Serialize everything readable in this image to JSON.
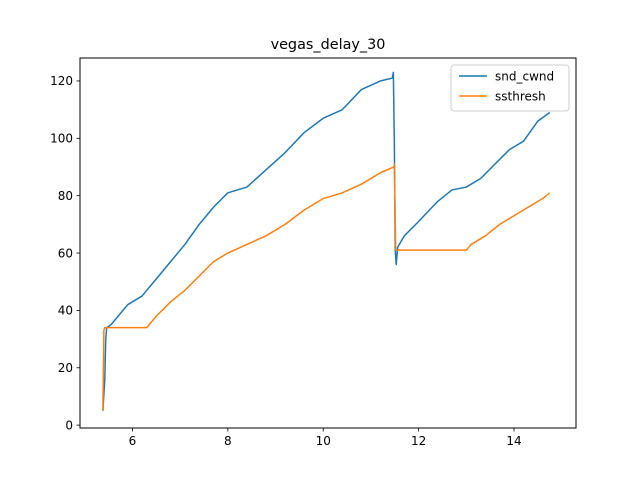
{
  "chart_data": {
    "type": "line",
    "title": "vegas_delay_30",
    "xlabel": "",
    "ylabel": "",
    "xlim": [
      4.9,
      15.3
    ],
    "ylim": [
      -1,
      128
    ],
    "xticks": [
      6,
      8,
      10,
      12,
      14
    ],
    "yticks": [
      0,
      20,
      40,
      60,
      80,
      100,
      120
    ],
    "grid": false,
    "legend": "top-right",
    "series": [
      {
        "name": "snd_cwnd",
        "color": "#1f77b4",
        "x": [
          5.38,
          5.42,
          5.44,
          5.46,
          5.55,
          5.7,
          5.9,
          6.2,
          6.5,
          6.8,
          7.1,
          7.4,
          7.7,
          8.0,
          8.4,
          8.8,
          9.2,
          9.6,
          10.0,
          10.4,
          10.8,
          11.2,
          11.45,
          11.47,
          11.49,
          11.51,
          11.53,
          11.56,
          11.7,
          12.0,
          12.4,
          12.7,
          13.0,
          13.3,
          13.6,
          13.9,
          14.2,
          14.5,
          14.75
        ],
        "values": [
          5,
          16,
          30,
          34,
          35,
          38,
          42,
          45,
          51,
          57,
          63,
          70,
          76,
          81,
          83,
          89,
          95,
          102,
          107,
          110,
          117,
          120,
          121,
          123,
          100,
          61,
          56,
          62,
          66,
          71,
          78,
          82,
          83,
          86,
          91,
          96,
          99,
          106,
          109
        ]
      },
      {
        "name": "ssthresh",
        "color": "#ff7f0e",
        "x": [
          5.38,
          5.4,
          5.42,
          6.3,
          6.5,
          6.8,
          7.1,
          7.4,
          7.7,
          8.0,
          8.4,
          8.8,
          9.2,
          9.6,
          10.0,
          10.4,
          10.8,
          11.2,
          11.48,
          11.49,
          11.52,
          12.0,
          13.0,
          13.1,
          13.4,
          13.7,
          14.0,
          14.3,
          14.6,
          14.75
        ],
        "values": [
          5,
          33,
          34,
          34,
          38,
          43,
          47,
          52,
          57,
          60,
          63,
          66,
          70,
          75,
          79,
          81,
          84,
          88,
          90,
          91,
          61,
          61,
          61,
          63,
          66,
          70,
          73,
          76,
          79,
          81
        ]
      }
    ]
  }
}
